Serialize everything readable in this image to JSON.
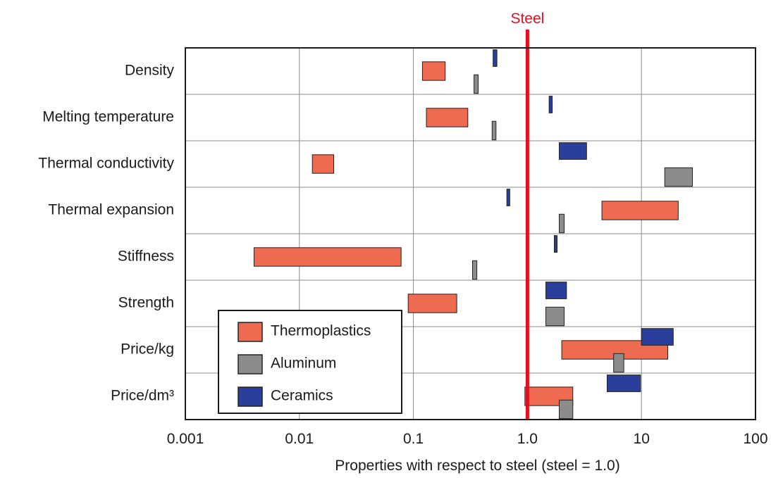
{
  "chart_data": {
    "type": "bar",
    "subtype": "horizontal-range",
    "scale": "log",
    "xlabel": "Properties with respect to steel (steel = 1.0)",
    "xlim": [
      0.001,
      100
    ],
    "xticks": [
      {
        "value": 0.001,
        "label": "0.001"
      },
      {
        "value": 0.01,
        "label": "0.01"
      },
      {
        "value": 0.1,
        "label": "0.1"
      },
      {
        "value": 1,
        "label": "1.0"
      },
      {
        "value": 10,
        "label": "10"
      },
      {
        "value": 100,
        "label": "100"
      }
    ],
    "grid": true,
    "reference_line": {
      "label": "Steel",
      "value": 1.0,
      "color": "#e01020"
    },
    "categories": [
      "Density",
      "Melting temperature",
      "Thermal conductivity",
      "Thermal expansion",
      "Stiffness",
      "Strength",
      "Price/kg",
      "Price/dm³"
    ],
    "series": [
      {
        "name": "Thermoplastics",
        "color": "#ee6a50",
        "ranges": [
          [
            0.12,
            0.19
          ],
          [
            0.13,
            0.3
          ],
          [
            0.013,
            0.02
          ],
          [
            4.5,
            21
          ],
          [
            0.004,
            0.078
          ],
          [
            0.09,
            0.24
          ],
          [
            2.0,
            17
          ],
          [
            0.95,
            2.5
          ]
        ]
      },
      {
        "name": "Aluminum",
        "color": "#8c8c8c",
        "ranges": [
          [
            0.34,
            0.37
          ],
          [
            0.49,
            0.53
          ],
          [
            16,
            28
          ],
          [
            1.9,
            2.1
          ],
          [
            0.33,
            0.36
          ],
          [
            1.45,
            2.1
          ],
          [
            5.7,
            7.0
          ],
          [
            1.9,
            2.5
          ]
        ]
      },
      {
        "name": "Ceramics",
        "color": "#2a3f9b",
        "ranges": [
          [
            0.5,
            0.54
          ],
          [
            1.55,
            1.65
          ],
          [
            1.9,
            3.3
          ],
          [
            0.66,
            0.7
          ],
          [
            1.72,
            1.82
          ],
          [
            1.45,
            2.2
          ],
          [
            10,
            19
          ],
          [
            5.0,
            9.8
          ]
        ]
      }
    ],
    "legend": {
      "position": "bottom-left"
    }
  }
}
